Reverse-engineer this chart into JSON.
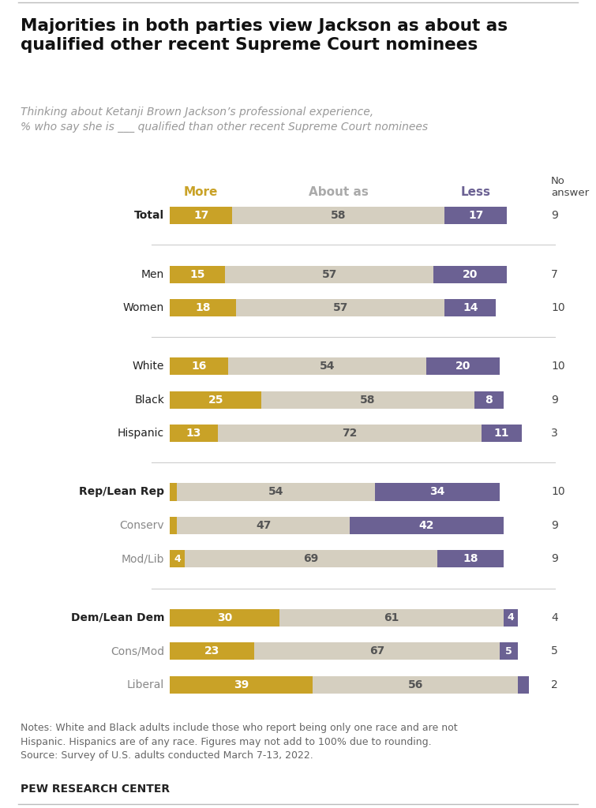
{
  "title": "Majorities in both parties view Jackson as about as\nqualified other recent Supreme Court nominees",
  "subtitle_line1": "Thinking about Ketanji Brown Jackson’s professional experience,",
  "subtitle_line2": "% who say she is ___ qualified than other recent Supreme Court nominees",
  "legend_labels": [
    "More",
    "About as",
    "Less"
  ],
  "no_answer_label": "No\nanswer",
  "categories": [
    "Total",
    "Men",
    "Women",
    "White",
    "Black",
    "Hispanic",
    "Rep/Lean Rep",
    "Conserv",
    "Mod/Lib",
    "Dem/Lean Dem",
    "Cons/Mod",
    "Liberal"
  ],
  "more": [
    17,
    15,
    18,
    16,
    25,
    13,
    2,
    2,
    4,
    30,
    23,
    39
  ],
  "about_as": [
    58,
    57,
    57,
    54,
    58,
    72,
    54,
    47,
    69,
    61,
    67,
    56
  ],
  "less": [
    17,
    20,
    14,
    20,
    8,
    11,
    34,
    42,
    18,
    4,
    5,
    3
  ],
  "no_answer": [
    9,
    7,
    10,
    10,
    9,
    3,
    10,
    9,
    9,
    4,
    5,
    2
  ],
  "color_more": "#C9A227",
  "color_about": "#D5CFC0",
  "color_less": "#6B6193",
  "bold_rows": [
    0,
    6,
    9
  ],
  "indented_rows": [
    7,
    8,
    10,
    11
  ],
  "notes": "Notes: White and Black adults include those who report being only one race and are not\nHispanic. Hispanics are of any race. Figures may not add to 100% due to rounding.\nSource: Survey of U.S. adults conducted March 7-13, 2022.",
  "footer": "PEW RESEARCH CENTER"
}
